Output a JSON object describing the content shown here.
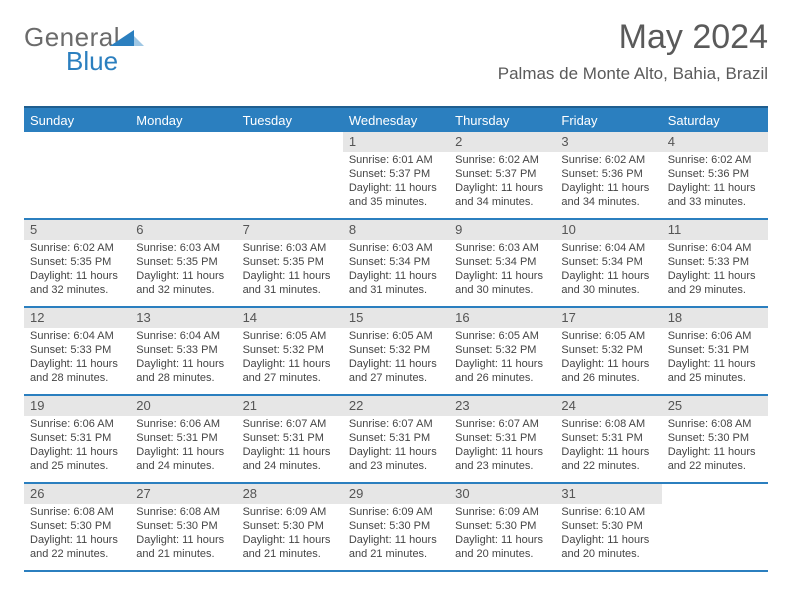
{
  "brand": {
    "word1": "General",
    "word2": "Blue",
    "accent_color": "#2b7fbf",
    "text_color": "#6b6b6b"
  },
  "title": "May 2024",
  "location": "Palmas de Monte Alto, Bahia, Brazil",
  "colors": {
    "header_bg": "#2b7fbf",
    "header_border": "#1f5e8f",
    "daynum_bg": "#e6e6e6",
    "body_text": "#454545"
  },
  "day_headers": [
    "Sunday",
    "Monday",
    "Tuesday",
    "Wednesday",
    "Thursday",
    "Friday",
    "Saturday"
  ],
  "weeks": [
    [
      {
        "num": "",
        "lines": []
      },
      {
        "num": "",
        "lines": []
      },
      {
        "num": "",
        "lines": []
      },
      {
        "num": "1",
        "lines": [
          "Sunrise: 6:01 AM",
          "Sunset: 5:37 PM",
          "Daylight: 11 hours and 35 minutes."
        ]
      },
      {
        "num": "2",
        "lines": [
          "Sunrise: 6:02 AM",
          "Sunset: 5:37 PM",
          "Daylight: 11 hours and 34 minutes."
        ]
      },
      {
        "num": "3",
        "lines": [
          "Sunrise: 6:02 AM",
          "Sunset: 5:36 PM",
          "Daylight: 11 hours and 34 minutes."
        ]
      },
      {
        "num": "4",
        "lines": [
          "Sunrise: 6:02 AM",
          "Sunset: 5:36 PM",
          "Daylight: 11 hours and 33 minutes."
        ]
      }
    ],
    [
      {
        "num": "5",
        "lines": [
          "Sunrise: 6:02 AM",
          "Sunset: 5:35 PM",
          "Daylight: 11 hours and 32 minutes."
        ]
      },
      {
        "num": "6",
        "lines": [
          "Sunrise: 6:03 AM",
          "Sunset: 5:35 PM",
          "Daylight: 11 hours and 32 minutes."
        ]
      },
      {
        "num": "7",
        "lines": [
          "Sunrise: 6:03 AM",
          "Sunset: 5:35 PM",
          "Daylight: 11 hours and 31 minutes."
        ]
      },
      {
        "num": "8",
        "lines": [
          "Sunrise: 6:03 AM",
          "Sunset: 5:34 PM",
          "Daylight: 11 hours and 31 minutes."
        ]
      },
      {
        "num": "9",
        "lines": [
          "Sunrise: 6:03 AM",
          "Sunset: 5:34 PM",
          "Daylight: 11 hours and 30 minutes."
        ]
      },
      {
        "num": "10",
        "lines": [
          "Sunrise: 6:04 AM",
          "Sunset: 5:34 PM",
          "Daylight: 11 hours and 30 minutes."
        ]
      },
      {
        "num": "11",
        "lines": [
          "Sunrise: 6:04 AM",
          "Sunset: 5:33 PM",
          "Daylight: 11 hours and 29 minutes."
        ]
      }
    ],
    [
      {
        "num": "12",
        "lines": [
          "Sunrise: 6:04 AM",
          "Sunset: 5:33 PM",
          "Daylight: 11 hours and 28 minutes."
        ]
      },
      {
        "num": "13",
        "lines": [
          "Sunrise: 6:04 AM",
          "Sunset: 5:33 PM",
          "Daylight: 11 hours and 28 minutes."
        ]
      },
      {
        "num": "14",
        "lines": [
          "Sunrise: 6:05 AM",
          "Sunset: 5:32 PM",
          "Daylight: 11 hours and 27 minutes."
        ]
      },
      {
        "num": "15",
        "lines": [
          "Sunrise: 6:05 AM",
          "Sunset: 5:32 PM",
          "Daylight: 11 hours and 27 minutes."
        ]
      },
      {
        "num": "16",
        "lines": [
          "Sunrise: 6:05 AM",
          "Sunset: 5:32 PM",
          "Daylight: 11 hours and 26 minutes."
        ]
      },
      {
        "num": "17",
        "lines": [
          "Sunrise: 6:05 AM",
          "Sunset: 5:32 PM",
          "Daylight: 11 hours and 26 minutes."
        ]
      },
      {
        "num": "18",
        "lines": [
          "Sunrise: 6:06 AM",
          "Sunset: 5:31 PM",
          "Daylight: 11 hours and 25 minutes."
        ]
      }
    ],
    [
      {
        "num": "19",
        "lines": [
          "Sunrise: 6:06 AM",
          "Sunset: 5:31 PM",
          "Daylight: 11 hours and 25 minutes."
        ]
      },
      {
        "num": "20",
        "lines": [
          "Sunrise: 6:06 AM",
          "Sunset: 5:31 PM",
          "Daylight: 11 hours and 24 minutes."
        ]
      },
      {
        "num": "21",
        "lines": [
          "Sunrise: 6:07 AM",
          "Sunset: 5:31 PM",
          "Daylight: 11 hours and 24 minutes."
        ]
      },
      {
        "num": "22",
        "lines": [
          "Sunrise: 6:07 AM",
          "Sunset: 5:31 PM",
          "Daylight: 11 hours and 23 minutes."
        ]
      },
      {
        "num": "23",
        "lines": [
          "Sunrise: 6:07 AM",
          "Sunset: 5:31 PM",
          "Daylight: 11 hours and 23 minutes."
        ]
      },
      {
        "num": "24",
        "lines": [
          "Sunrise: 6:08 AM",
          "Sunset: 5:31 PM",
          "Daylight: 11 hours and 22 minutes."
        ]
      },
      {
        "num": "25",
        "lines": [
          "Sunrise: 6:08 AM",
          "Sunset: 5:30 PM",
          "Daylight: 11 hours and 22 minutes."
        ]
      }
    ],
    [
      {
        "num": "26",
        "lines": [
          "Sunrise: 6:08 AM",
          "Sunset: 5:30 PM",
          "Daylight: 11 hours and 22 minutes."
        ]
      },
      {
        "num": "27",
        "lines": [
          "Sunrise: 6:08 AM",
          "Sunset: 5:30 PM",
          "Daylight: 11 hours and 21 minutes."
        ]
      },
      {
        "num": "28",
        "lines": [
          "Sunrise: 6:09 AM",
          "Sunset: 5:30 PM",
          "Daylight: 11 hours and 21 minutes."
        ]
      },
      {
        "num": "29",
        "lines": [
          "Sunrise: 6:09 AM",
          "Sunset: 5:30 PM",
          "Daylight: 11 hours and 21 minutes."
        ]
      },
      {
        "num": "30",
        "lines": [
          "Sunrise: 6:09 AM",
          "Sunset: 5:30 PM",
          "Daylight: 11 hours and 20 minutes."
        ]
      },
      {
        "num": "31",
        "lines": [
          "Sunrise: 6:10 AM",
          "Sunset: 5:30 PM",
          "Daylight: 11 hours and 20 minutes."
        ]
      },
      {
        "num": "",
        "lines": []
      }
    ]
  ]
}
